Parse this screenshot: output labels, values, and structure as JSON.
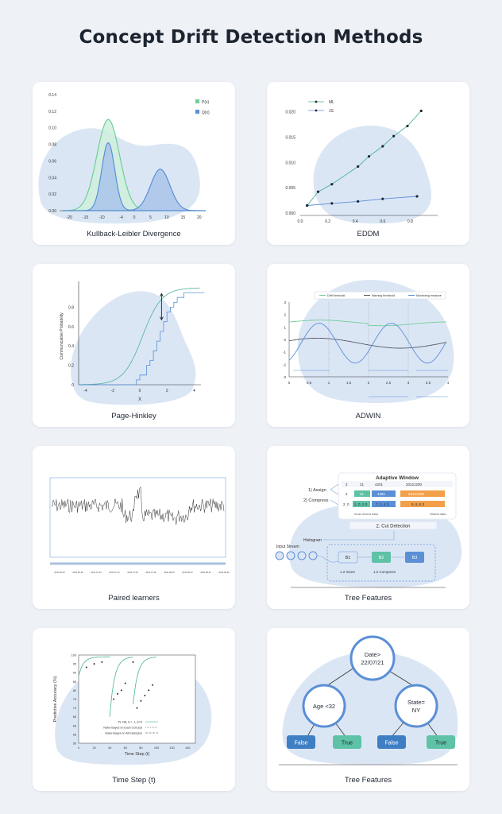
{
  "page_title": "Concept Drift Detection Methods",
  "colors": {
    "blob": "#dbe6f5",
    "blue": "#5b8fd6",
    "green": "#6fcf97",
    "green_fill": "#cfeedd",
    "teal": "#49b39a",
    "dark": "#555b66",
    "false_box": "#3e7fc4",
    "true_box": "#5ec2a6",
    "orange": "#f2a04a"
  },
  "cards": {
    "kl": {
      "caption": "Kullback-Leibler Divergence"
    },
    "eddm": {
      "caption": "EDDM"
    },
    "ph": {
      "caption": "Page-Hinkley"
    },
    "adwin": {
      "caption": "ADWIN"
    },
    "paired": {
      "caption": "Paired learners"
    },
    "tree1": {
      "caption": "Tree Features",
      "window_title": "Adaptive Window",
      "assign_label": "1) Assign",
      "compress_label": "2) Compress",
      "rows": [
        [
          "2",
          "21",
          "4201",
          "20121200"
        ],
        [
          "2",
          "21",
          "4201",
          "20121200"
        ],
        [
          "2, 0",
          "2, 0, 2 0",
          "7, 1, 4 2",
          "9, 8, 6 3"
        ]
      ],
      "recent_label": "most recent data",
      "oldest_label": "Oldest data",
      "cut_label": "2. Cut Detection",
      "histogram_label": "Histogram",
      "input_label": "Input Stream",
      "buckets": [
        "B1",
        "B2",
        "B3"
      ],
      "insert_label": "1.2 Insert",
      "compress2_label": "1.2 Compress"
    },
    "ts": {
      "caption": "Time Step (t)"
    },
    "tree2": {
      "caption": "Tree Features",
      "root": [
        "Date>",
        "22/07/21"
      ],
      "left": "Age <32",
      "right": [
        "State=",
        "NY"
      ],
      "leaves": [
        "False",
        "True",
        "False",
        "True"
      ]
    }
  },
  "chart_data": [
    {
      "type": "area",
      "title": "Kullback-Leibler Divergence",
      "xlabel": "",
      "ylabel": "",
      "xlim": [
        -22,
        22
      ],
      "ylim": [
        0,
        0.14
      ],
      "x_ticks": [
        -20,
        -15,
        -10,
        -4,
        0,
        5,
        10,
        15,
        20
      ],
      "y_ticks": [
        "0.00",
        "0.02",
        "0.04",
        "0.06",
        "0.08",
        "0.10",
        "0.12",
        "0.14"
      ],
      "legend_position": "top-right",
      "series": [
        {
          "name": "P(x)",
          "color": "#6fcf97",
          "mean": -8,
          "sd": 3.5,
          "peak": 0.11
        },
        {
          "name": "Q(x)",
          "color": "#5b8fd6",
          "components": [
            {
              "mean": -8,
              "sd": 2,
              "peak": 0.082
            },
            {
              "mean": 8,
              "sd": 3,
              "peak": 0.05
            }
          ]
        }
      ]
    },
    {
      "type": "line",
      "title": "EDDM",
      "xlim": [
        0,
        1
      ],
      "ylim": [
        0,
        0.022
      ],
      "x_ticks": [
        "0.0",
        "0.2",
        "0.4",
        "0.6",
        "0.8"
      ],
      "y_ticks": [
        "0.000",
        "0.005",
        "0.010",
        "0.015",
        "0.020"
      ],
      "legend_position": "top-left",
      "series": [
        {
          "name": "ML",
          "color": "#49b39a",
          "x": [
            0.05,
            0.13,
            0.23,
            0.42,
            0.5,
            0.6,
            0.68,
            0.78,
            0.88
          ],
          "y": [
            0.0015,
            0.0042,
            0.0057,
            0.0092,
            0.0112,
            0.0132,
            0.0152,
            0.0172,
            0.0202
          ]
        },
        {
          "name": "JS",
          "color": "#5b8fd6",
          "x": [
            0.05,
            0.23,
            0.42,
            0.6,
            0.85
          ],
          "y": [
            0.0015,
            0.0019,
            0.0023,
            0.0028,
            0.0033
          ]
        }
      ]
    },
    {
      "type": "line",
      "title": "Page-Hinkley",
      "xlabel": "X",
      "ylabel": "Communicative Probability",
      "xlim": [
        -4.5,
        4.5
      ],
      "ylim": [
        0,
        1
      ],
      "x_ticks": [
        -4,
        -2,
        0,
        2,
        4
      ],
      "y_ticks": [
        "0",
        "0.2",
        "0.4",
        "0.6",
        "0.8"
      ]
    },
    {
      "type": "line",
      "title": "ADWIN",
      "xlim": [
        0,
        4
      ],
      "ylim": [
        -3,
        3
      ],
      "x_ticks": [
        "0",
        "0.5",
        "1",
        "1.5",
        "2",
        "2.5",
        "3",
        "3.5",
        "4"
      ],
      "y_ticks": [
        "3",
        "2",
        "1",
        "0",
        "-1",
        "-2",
        "-3"
      ],
      "legend_position": "top",
      "series": [
        {
          "name": "Drift threshold",
          "color": "#6fcf97"
        },
        {
          "name": "Warning threshold",
          "color": "#555b66"
        },
        {
          "name": "Monitoring measure",
          "color": "#5b8fd6"
        }
      ]
    },
    {
      "type": "line",
      "title": "Paired learners",
      "x_ticks": [
        "2016-06-18",
        "2016-06-26",
        "2016-07-04",
        "2016-07-12",
        "2016-07-20",
        "2016-07-28",
        "2016-08-05",
        "2016-08-13",
        "2016-08-21",
        "2016-08-29"
      ]
    },
    {
      "type": "line",
      "title": "Time Step (t)",
      "xlabel": "Time Step (t)",
      "ylabel": "Predictive Accuracy (%)",
      "xlim": [
        0,
        150
      ],
      "ylim": [
        50,
        100
      ],
      "x_ticks": [
        0,
        20,
        40,
        60,
        80,
        100,
        120,
        140
      ],
      "y_ticks": [
        50,
        55,
        60,
        65,
        70,
        75,
        80,
        85,
        90,
        95,
        100
      ],
      "legend": [
        "PL-NB, θ = .1, w=6",
        "Naive Bayes on Each Concept",
        "Naive Bayes on All Examples"
      ]
    }
  ]
}
